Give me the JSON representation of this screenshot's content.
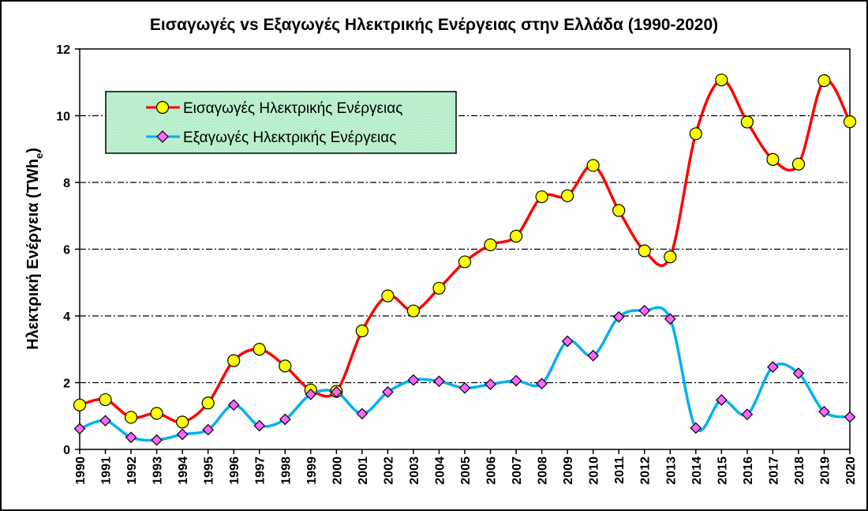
{
  "chart_data": {
    "type": "line",
    "title": "Εισαγωγές vs Εξαγωγές Ηλεκτρικής Ενέργειας στην Ελλάδα (1990-2020)",
    "xlabel": "",
    "ylabel": {
      "main": "Ηλεκτρική Ενέργεια (TWh",
      "sub": "e",
      "close": ")"
    },
    "ylim": [
      0,
      12
    ],
    "yticks": [
      "0",
      "2",
      "4",
      "6",
      "8",
      "10",
      "12"
    ],
    "categories": [
      "1990",
      "1991",
      "1992",
      "1993",
      "1994",
      "1995",
      "1996",
      "1997",
      "1998",
      "1999",
      "2000",
      "2001",
      "2002",
      "2003",
      "2004",
      "2005",
      "2006",
      "2007",
      "2008",
      "2009",
      "2010",
      "2011",
      "2012",
      "2013",
      "2014",
      "2015",
      "2016",
      "2017",
      "2018",
      "2019",
      "2020"
    ],
    "series": [
      {
        "name": "Εισαγωγές Ηλεκτρικής Ενέργειας",
        "color": "#ff0000",
        "marker": "circle",
        "marker_fill": "#ffff00",
        "values": [
          1.33,
          1.49,
          0.96,
          1.08,
          0.82,
          1.39,
          2.66,
          3.0,
          2.5,
          1.78,
          1.74,
          3.55,
          4.6,
          4.15,
          4.83,
          5.62,
          6.13,
          6.39,
          7.57,
          7.6,
          8.51,
          7.16,
          5.95,
          5.77,
          9.46,
          11.07,
          9.81,
          8.69,
          8.55,
          11.05,
          9.82
        ]
      },
      {
        "name": "Εξαγωγές Ηλεκτρικής Ενέργειας",
        "color": "#00b0f0",
        "marker": "diamond",
        "marker_fill": "#ff66ff",
        "values": [
          0.62,
          0.86,
          0.36,
          0.28,
          0.45,
          0.59,
          1.33,
          0.71,
          0.9,
          1.65,
          1.72,
          1.07,
          1.72,
          2.08,
          2.04,
          1.84,
          1.95,
          2.06,
          1.97,
          3.24,
          2.81,
          3.97,
          4.16,
          3.91,
          0.64,
          1.48,
          1.05,
          2.47,
          2.28,
          1.13,
          0.97
        ]
      }
    ],
    "grid": "horizontal dash-dot",
    "legend_position": "top-left",
    "legend_fill": "#c6efce"
  }
}
